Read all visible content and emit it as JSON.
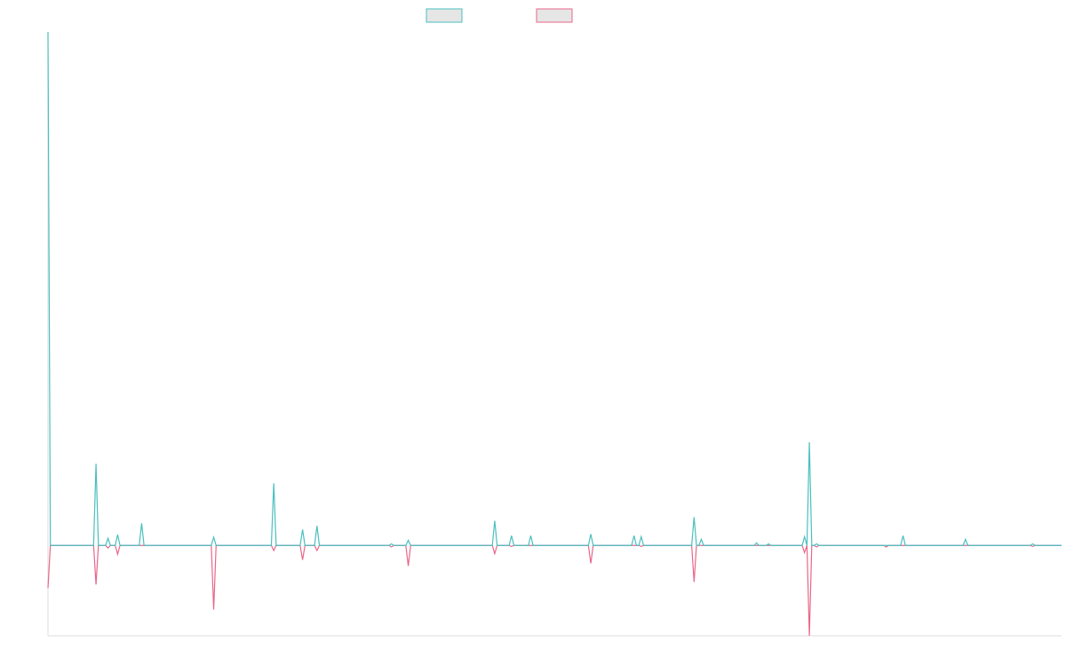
{
  "chart_data": {
    "type": "line",
    "x": [
      0,
      1,
      19,
      20,
      21,
      24,
      25,
      26,
      28,
      29,
      30,
      38,
      39,
      40,
      68,
      69,
      70,
      93,
      94,
      95,
      105,
      106,
      107,
      111,
      112,
      113,
      142,
      143,
      144,
      149,
      150,
      151,
      185,
      186,
      187,
      192,
      193,
      194,
      200,
      201,
      202,
      225,
      226,
      227,
      243,
      244,
      245,
      246,
      247,
      248,
      268,
      269,
      270,
      271,
      272,
      273,
      294,
      295,
      296,
      299,
      300,
      301,
      314,
      315,
      316,
      317,
      318,
      319,
      320,
      321,
      348,
      349,
      350,
      355,
      356,
      357,
      381,
      382,
      383,
      409,
      410,
      411,
      422
    ],
    "series": [
      {
        "color": "#e8678a",
        "values": [
          -8.3,
          0,
          0,
          -7.6,
          0,
          0,
          -0.5,
          0,
          0,
          -1.7,
          0,
          0,
          0,
          0,
          0,
          -12.5,
          0,
          0,
          -1,
          0,
          0,
          -2.8,
          0,
          0,
          -1,
          0,
          0,
          -0.3,
          0,
          0,
          -4,
          0,
          0,
          -1.6,
          0,
          0,
          -0.2,
          0,
          0,
          0,
          0,
          0,
          -3.5,
          0,
          0,
          0,
          0,
          0,
          -0.2,
          0,
          0,
          -7.1,
          0,
          0,
          0,
          0,
          0,
          0,
          0,
          0,
          0,
          0,
          0,
          -1.4,
          0,
          -17.6,
          0,
          0,
          -0.3,
          0,
          0,
          -0.3,
          0,
          0,
          0,
          0,
          0,
          0,
          0,
          0,
          -0.2,
          0,
          0
        ]
      },
      {
        "color": "#4bbfbf",
        "values": [
          100,
          0,
          0,
          15.9,
          0,
          0,
          1.4,
          0,
          0,
          2.1,
          0,
          0,
          4.3,
          0,
          0,
          1.6,
          0,
          0,
          12.1,
          0,
          0,
          3.1,
          0,
          0,
          3.8,
          0,
          0,
          0.3,
          0,
          0,
          1,
          0,
          0,
          4.8,
          0,
          0,
          1.9,
          0,
          0,
          1.9,
          0,
          0,
          2.2,
          0,
          0,
          1.9,
          0,
          0,
          1.7,
          0,
          0,
          5.5,
          0,
          0,
          1.2,
          0,
          0,
          0.5,
          0,
          0,
          0.3,
          0,
          0,
          1.7,
          0,
          20.1,
          0,
          0,
          0.3,
          0,
          0,
          0,
          0,
          0,
          1.9,
          0,
          0,
          1.2,
          0,
          0,
          0.3,
          0,
          0
        ]
      }
    ],
    "xlim": [
      0,
      422
    ],
    "ylim": [
      -17.6,
      100
    ]
  }
}
